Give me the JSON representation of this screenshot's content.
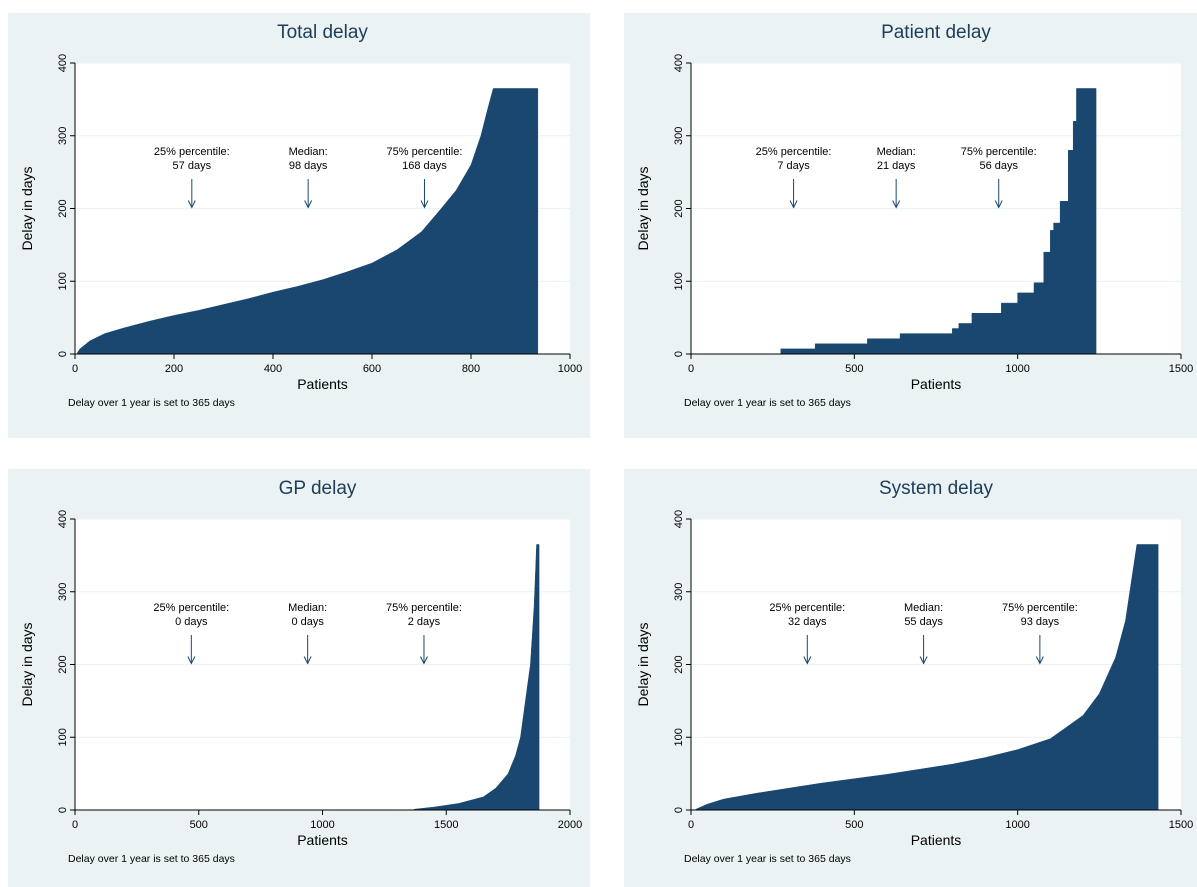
{
  "common": {
    "ylabel": "Delay in days",
    "xlabel": "Patients",
    "note": "Delay over 1 year is set to 365 days",
    "fill_color": "#1a476f",
    "panel_bg": "#eaf2f3",
    "grid_color": "#eaf2f3"
  },
  "chart_data": [
    {
      "type": "area",
      "title": "Total delay",
      "xlabel": "Patients",
      "ylabel": "Delay in days",
      "xlim": [
        0,
        1000
      ],
      "ylim": [
        0,
        400
      ],
      "xticks": [
        0,
        200,
        400,
        600,
        800,
        1000
      ],
      "yticks": [
        0,
        100,
        200,
        300,
        400
      ],
      "grid": true,
      "x": [
        5,
        10,
        30,
        60,
        100,
        150,
        200,
        250,
        300,
        350,
        400,
        450,
        500,
        550,
        600,
        650,
        700,
        740,
        770,
        800,
        820,
        835,
        845,
        935
      ],
      "y": [
        2,
        7,
        18,
        28,
        36,
        45,
        53,
        60,
        68,
        76,
        85,
        93,
        102,
        113,
        125,
        143,
        168,
        200,
        225,
        260,
        300,
        340,
        365,
        365
      ],
      "annotations": [
        {
          "label": "25% percentile:",
          "value": "57 days",
          "x": 236,
          "y": 200
        },
        {
          "label": "Median:",
          "value": "98 days",
          "x": 471,
          "y": 200
        },
        {
          "label": "75% percentile:",
          "value": "168 days",
          "x": 706,
          "y": 200
        }
      ]
    },
    {
      "type": "area",
      "title": "Patient delay",
      "xlabel": "Patients",
      "ylabel": "Delay in days",
      "xlim": [
        0,
        1500
      ],
      "ylim": [
        0,
        400
      ],
      "xticks": [
        0,
        500,
        1000,
        1500
      ],
      "yticks": [
        0,
        100,
        200,
        300,
        400
      ],
      "grid": true,
      "x": [
        275,
        380,
        540,
        640,
        800,
        820,
        860,
        950,
        1000,
        1050,
        1080,
        1100,
        1110,
        1130,
        1155,
        1170,
        1180,
        1240
      ],
      "y": [
        7,
        14,
        21,
        28,
        35,
        42,
        56,
        70,
        84,
        98,
        140,
        170,
        180,
        210,
        280,
        320,
        365,
        365
      ],
      "step": true,
      "annotations": [
        {
          "label": "25% percentile:",
          "value": "7 days",
          "x": 314,
          "y": 200
        },
        {
          "label": "Median:",
          "value": "21 days",
          "x": 628,
          "y": 200
        },
        {
          "label": "75% percentile:",
          "value": "56 days",
          "x": 942,
          "y": 200
        }
      ]
    },
    {
      "type": "area",
      "title": "GP delay",
      "xlabel": "Patients",
      "ylabel": "Delay in days",
      "xlim": [
        0,
        2000
      ],
      "ylim": [
        0,
        400
      ],
      "xticks": [
        0,
        500,
        1000,
        1500,
        2000
      ],
      "yticks": [
        0,
        100,
        200,
        300,
        400
      ],
      "grid": true,
      "x": [
        1370,
        1450,
        1550,
        1650,
        1700,
        1750,
        1780,
        1800,
        1820,
        1840,
        1855,
        1865,
        1875
      ],
      "y": [
        1,
        4,
        9,
        18,
        30,
        50,
        75,
        100,
        150,
        200,
        280,
        365,
        365
      ],
      "annotations": [
        {
          "label": "25% percentile:",
          "value": "0 days",
          "x": 470,
          "y": 200
        },
        {
          "label": "Median:",
          "value": "0 days",
          "x": 940,
          "y": 200
        },
        {
          "label": "75% percentile:",
          "value": "2 days",
          "x": 1410,
          "y": 200
        }
      ]
    },
    {
      "type": "area",
      "title": "System delay",
      "xlabel": "Patients",
      "ylabel": "Delay in days",
      "xlim": [
        0,
        1500
      ],
      "ylim": [
        0,
        400
      ],
      "xticks": [
        0,
        500,
        1000,
        1500
      ],
      "yticks": [
        0,
        100,
        200,
        300,
        400
      ],
      "grid": true,
      "x": [
        15,
        50,
        100,
        200,
        300,
        400,
        500,
        600,
        700,
        800,
        900,
        1000,
        1100,
        1200,
        1250,
        1300,
        1330,
        1350,
        1365,
        1430
      ],
      "y": [
        1,
        8,
        15,
        23,
        30,
        37,
        43,
        49,
        56,
        63,
        72,
        83,
        98,
        130,
        160,
        210,
        260,
        320,
        365,
        365
      ],
      "annotations": [
        {
          "label": "25% percentile:",
          "value": "32 days",
          "x": 356,
          "y": 200
        },
        {
          "label": "Median:",
          "value": "55 days",
          "x": 712,
          "y": 200
        },
        {
          "label": "75% percentile:",
          "value": "93 days",
          "x": 1068,
          "y": 200
        }
      ]
    }
  ]
}
